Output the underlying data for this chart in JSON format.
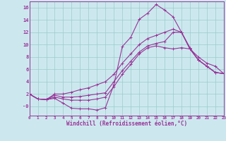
{
  "bg_color": "#cce8ee",
  "line_color": "#993399",
  "grid_color": "#99cccc",
  "xlabel": "Windchill (Refroidissement éolien,°C)",
  "xlim": [
    0,
    23
  ],
  "ylim": [
    -1.5,
    17
  ],
  "xticks": [
    0,
    1,
    2,
    3,
    4,
    5,
    6,
    7,
    8,
    9,
    10,
    11,
    12,
    13,
    14,
    15,
    16,
    17,
    18,
    19,
    20,
    21,
    22,
    23
  ],
  "yticks": [
    0,
    2,
    4,
    6,
    8,
    10,
    12,
    14,
    16
  ],
  "ytick_labels": [
    "-0",
    "2",
    "4",
    "6",
    "8",
    "10",
    "12",
    "14",
    "16"
  ],
  "curve1_x": [
    0,
    1,
    2,
    3,
    4,
    5,
    6,
    7,
    8,
    9,
    10,
    11,
    12,
    13,
    14,
    15,
    16,
    17,
    18,
    19,
    20,
    21,
    22,
    23
  ],
  "curve1_y": [
    2.0,
    1.2,
    1.1,
    1.3,
    0.5,
    -0.3,
    -0.4,
    -0.4,
    -0.6,
    -0.2,
    3.5,
    9.7,
    11.2,
    14.1,
    15.1,
    16.5,
    15.6,
    14.5,
    12.0,
    9.5,
    7.5,
    6.5,
    5.5,
    5.3
  ],
  "curve2_x": [
    0,
    1,
    2,
    3,
    4,
    5,
    6,
    7,
    8,
    9,
    10,
    11,
    12,
    13,
    14,
    15,
    16,
    17,
    18,
    19,
    20,
    21,
    22,
    23
  ],
  "curve2_y": [
    2.0,
    1.2,
    1.1,
    1.5,
    1.2,
    1.0,
    1.0,
    1.0,
    1.2,
    1.5,
    3.2,
    5.2,
    6.8,
    8.5,
    9.5,
    9.8,
    9.5,
    9.3,
    9.5,
    9.3,
    8.0,
    7.0,
    6.5,
    5.3
  ],
  "curve3_x": [
    0,
    1,
    2,
    3,
    4,
    5,
    6,
    7,
    8,
    9,
    10,
    11,
    12,
    13,
    14,
    15,
    16,
    17,
    18,
    19,
    20,
    21,
    22,
    23
  ],
  "curve3_y": [
    2.0,
    1.2,
    1.1,
    1.8,
    1.5,
    1.5,
    1.6,
    1.8,
    2.0,
    2.2,
    4.0,
    5.8,
    7.3,
    8.8,
    9.8,
    10.2,
    10.5,
    12.0,
    12.0,
    9.3,
    7.5,
    6.5,
    5.5,
    5.3
  ],
  "curve4_x": [
    0,
    1,
    2,
    3,
    4,
    5,
    6,
    7,
    8,
    9,
    10,
    11,
    12,
    13,
    14,
    15,
    16,
    17,
    18,
    19,
    20,
    21,
    22,
    23
  ],
  "curve4_y": [
    2.0,
    1.2,
    1.1,
    2.0,
    2.0,
    2.3,
    2.7,
    3.0,
    3.5,
    4.0,
    5.2,
    7.0,
    8.5,
    10.0,
    11.0,
    11.5,
    12.0,
    12.5,
    12.0,
    9.3,
    7.5,
    6.5,
    5.5,
    5.3
  ]
}
